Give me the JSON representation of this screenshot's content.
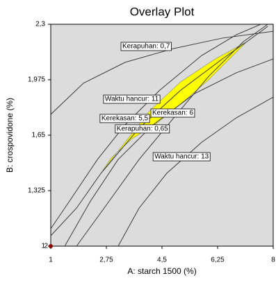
{
  "chart_data": {
    "type": "overlay",
    "title": "Overlay Plot",
    "x_label": "A: starch 1500 (%)",
    "y_label": "B: crospovidone (%)",
    "xlim": [
      1,
      8
    ],
    "ylim": [
      1,
      2.3
    ],
    "xticks": [
      1,
      {
        "value": 2.75,
        "label": "2,75"
      },
      {
        "value": 4.5,
        "label": "4,5"
      },
      {
        "value": 6.25,
        "label": "6,25"
      },
      8
    ],
    "yticks": [
      1,
      {
        "value": 1.325,
        "label": "1,325"
      },
      {
        "value": 1.65,
        "label": "1,65"
      },
      {
        "value": 1.975,
        "label": "1,975"
      },
      {
        "value": 2.3,
        "label": "2,3"
      }
    ],
    "background": "#dcdcdc",
    "line_color": "#3a3a3a",
    "region": {
      "color": "#ffff00",
      "x": [
        2.58,
        3.34,
        4.11,
        5.09,
        6.18,
        7.17,
        5.97,
        5.09,
        4.33,
        3.56,
        2.9
      ],
      "y": [
        1.427,
        1.609,
        1.792,
        1.963,
        2.097,
        2.198,
        1.975,
        1.833,
        1.719,
        1.63,
        1.516
      ]
    },
    "contours": [
      {
        "label": "Kerapuhan: 0,7",
        "x": [
          1,
          2.03,
          3.34,
          4.87,
          6.4,
          8
        ],
        "y": [
          1.772,
          1.955,
          2.077,
          2.158,
          2.219,
          2.259
        ],
        "label_at": [
          3.21,
          2.17
        ]
      },
      {
        "label": "Waktu hancur: 11",
        "x": [
          1,
          1.59,
          2.47,
          3.34,
          4.43,
          5.75,
          6.84,
          7.61
        ],
        "y": [
          1.102,
          1.264,
          1.508,
          1.711,
          1.914,
          2.117,
          2.239,
          2.3
        ],
        "label_at": [
          2.66,
          1.861
        ]
      },
      {
        "label": "Kerekasan: 6",
        "x": [
          1.81,
          2.68,
          3.78,
          4.87,
          5.97,
          7.06,
          7.83
        ],
        "y": [
          1,
          1.223,
          1.508,
          1.752,
          1.995,
          2.198,
          2.3
        ],
        "label_at": [
          4.15,
          1.78
        ]
      },
      {
        "label": "Kerekasan: 5,5",
        "x": [
          1,
          1.81,
          2.58,
          3.78,
          5.09,
          6.4,
          7.17,
          7.83
        ],
        "y": [
          1.061,
          1.223,
          1.427,
          1.691,
          1.914,
          2.097,
          2.198,
          2.288
        ],
        "label_at": [
          2.55,
          1.748
        ]
      },
      {
        "label": "Kerapuhan: 0,65",
        "x": [
          1.44,
          2.25,
          3.12,
          4.22,
          5.53,
          6.84,
          8
        ],
        "y": [
          1,
          1.264,
          1.508,
          1.711,
          1.894,
          2.016,
          2.097
        ],
        "label_at": [
          3.03,
          1.687
        ]
      },
      {
        "label": "Waktu hancur: 13",
        "x": [
          3.12,
          3.78,
          4.65,
          5.75,
          6.84,
          8
        ],
        "y": [
          1,
          1.223,
          1.427,
          1.609,
          1.752,
          1.873
        ],
        "label_at": [
          4.22,
          1.524
        ]
      }
    ],
    "design_point": {
      "x": 1,
      "y": 1,
      "label": "2",
      "color": "#8b0000"
    }
  }
}
